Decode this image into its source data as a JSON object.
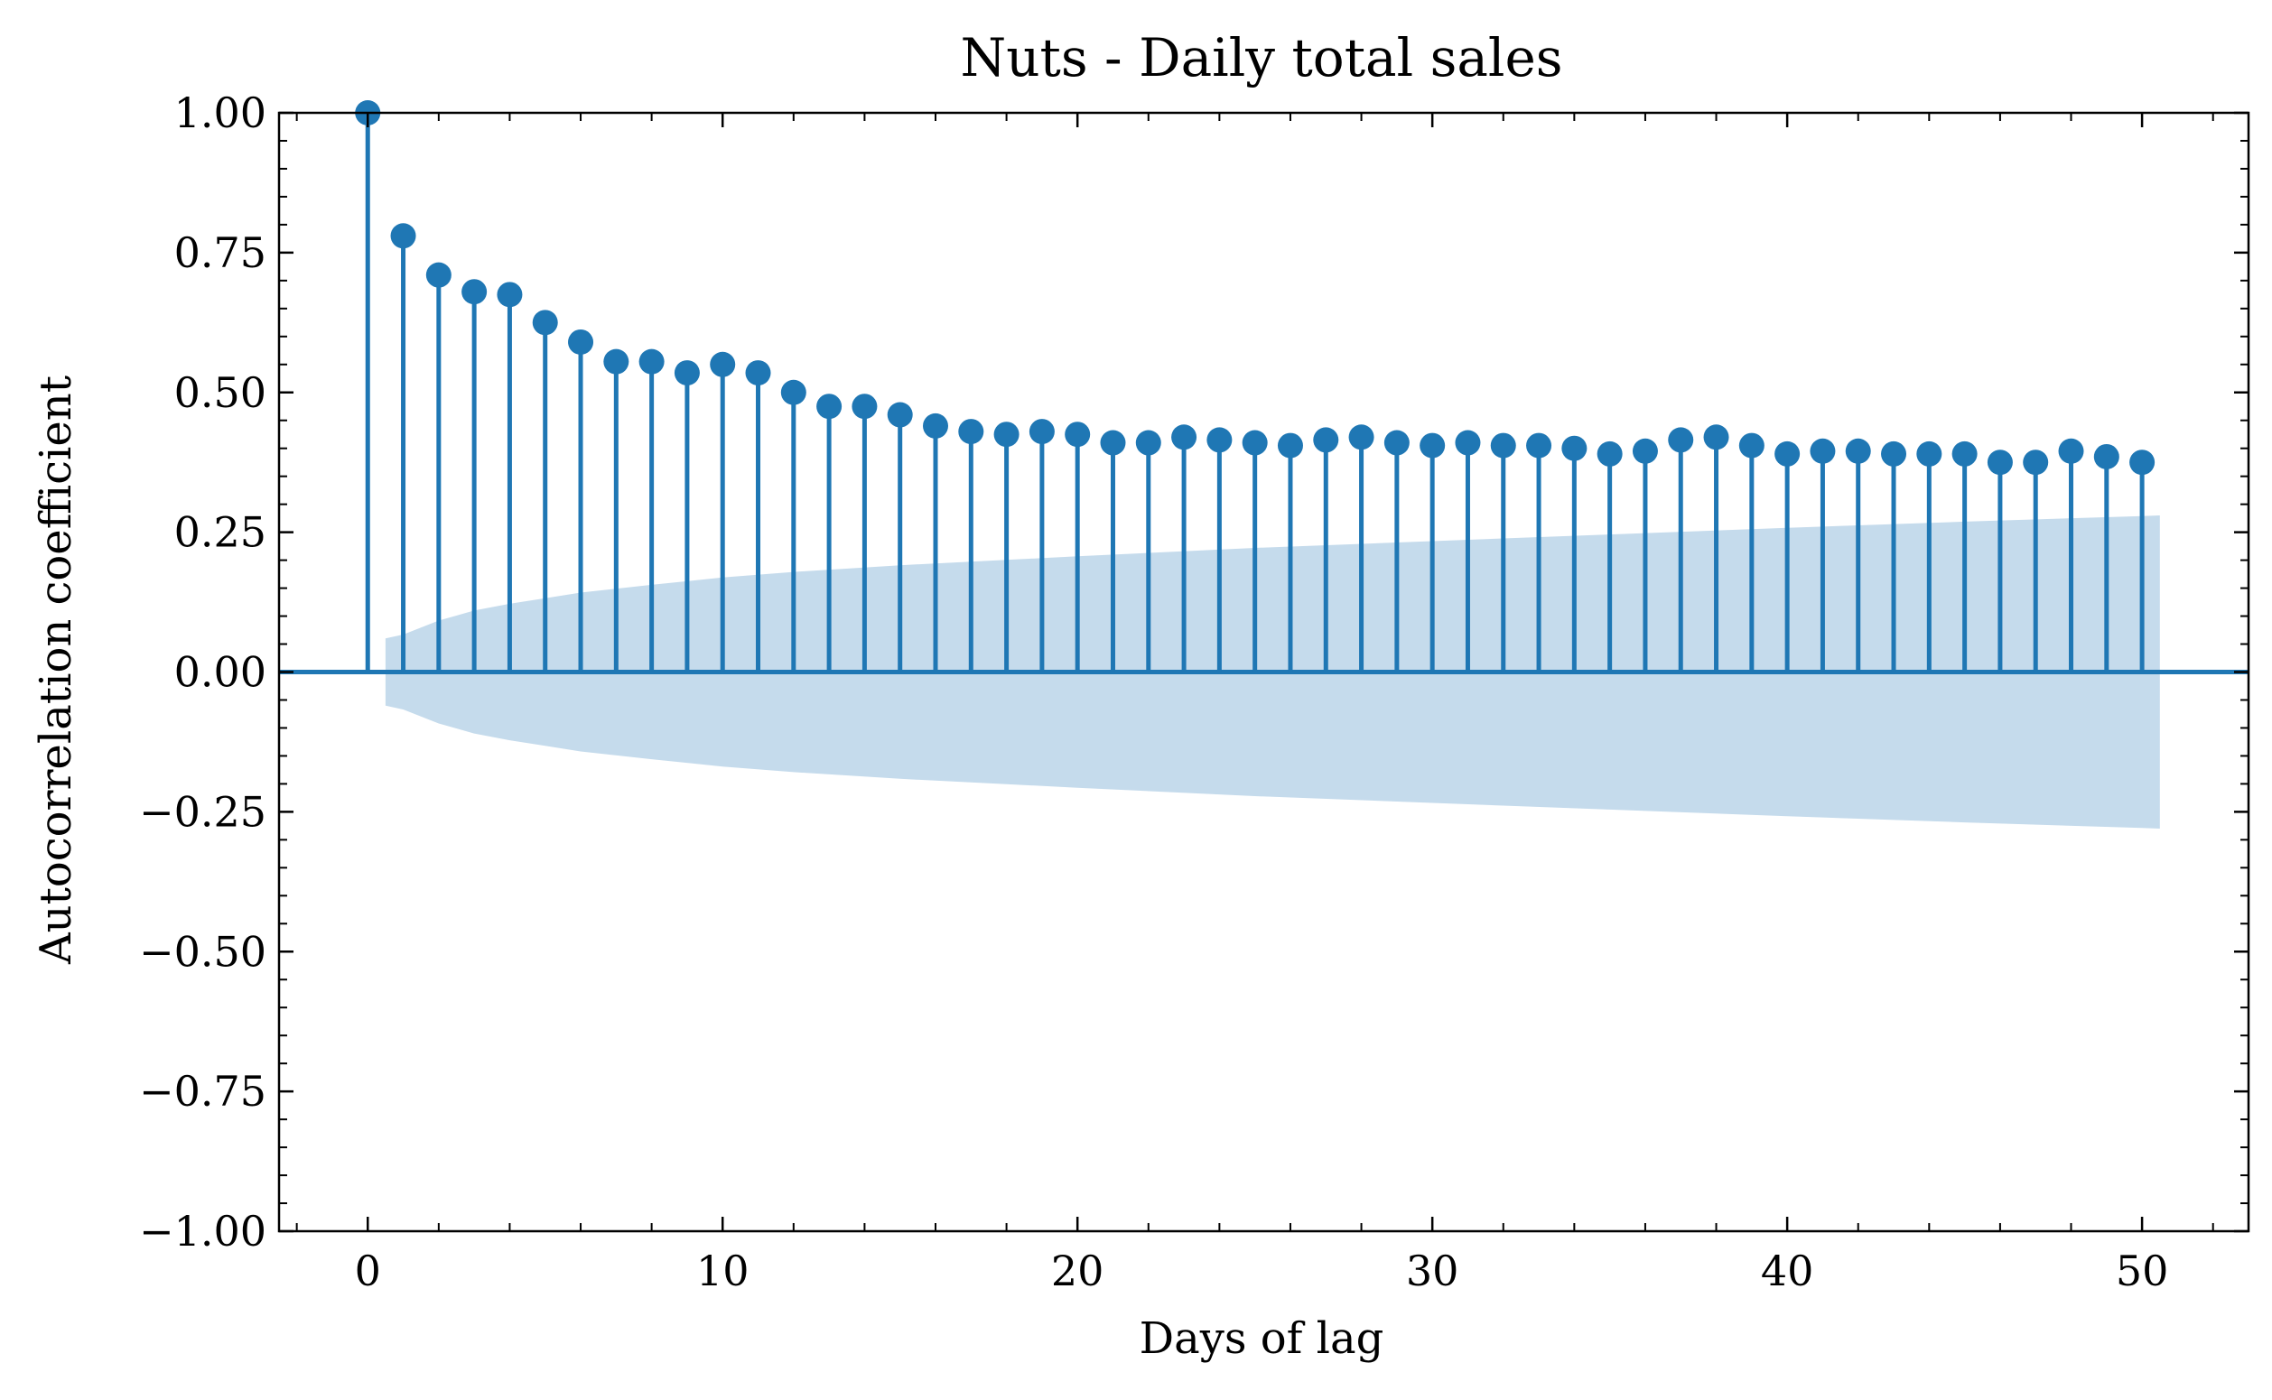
{
  "chart_data": {
    "type": "stem",
    "title": "Nuts - Daily total sales",
    "xlabel": "Days of lag",
    "ylabel": "Autocorrelation coefficient",
    "xlim": [
      -2.5,
      53
    ],
    "ylim": [
      -1.0,
      1.0
    ],
    "xticks": [
      0,
      10,
      20,
      30,
      40,
      50
    ],
    "xtick_labels": [
      "0",
      "10",
      "20",
      "30",
      "40",
      "50"
    ],
    "yticks": [
      1.0,
      0.75,
      0.5,
      0.25,
      0.0,
      -0.25,
      -0.5,
      -0.75,
      -1.0
    ],
    "ytick_labels": [
      "1.00",
      "0.75",
      "0.50",
      "0.25",
      "0.00",
      "−0.25",
      "−0.50",
      "−0.75",
      "−1.00"
    ],
    "grid": false,
    "colors": {
      "stem": "#1f77b4",
      "confidence_band": "#c5dbec",
      "zero_line": "#1f77b4"
    },
    "lags": [
      0,
      1,
      2,
      3,
      4,
      5,
      6,
      7,
      8,
      9,
      10,
      11,
      12,
      13,
      14,
      15,
      16,
      17,
      18,
      19,
      20,
      21,
      22,
      23,
      24,
      25,
      26,
      27,
      28,
      29,
      30,
      31,
      32,
      33,
      34,
      35,
      36,
      37,
      38,
      39,
      40,
      41,
      42,
      43,
      44,
      45,
      46,
      47,
      48,
      49,
      50
    ],
    "acf": [
      1.0,
      0.78,
      0.71,
      0.68,
      0.675,
      0.625,
      0.59,
      0.555,
      0.555,
      0.535,
      0.55,
      0.535,
      0.5,
      0.475,
      0.475,
      0.46,
      0.44,
      0.43,
      0.425,
      0.43,
      0.425,
      0.41,
      0.41,
      0.42,
      0.415,
      0.41,
      0.405,
      0.415,
      0.42,
      0.41,
      0.405,
      0.41,
      0.405,
      0.405,
      0.4,
      0.39,
      0.395,
      0.415,
      0.42,
      0.405,
      0.39,
      0.395,
      0.395,
      0.39,
      0.39,
      0.39,
      0.375,
      0.375,
      0.395,
      0.385,
      0.375
    ],
    "confidence_band": {
      "x": [
        0.5,
        1,
        2,
        3,
        4,
        5,
        6,
        8,
        10,
        12,
        15,
        20,
        25,
        30,
        35,
        40,
        45,
        50,
        50.5
      ],
      "upper": [
        0.06,
        0.067,
        0.092,
        0.11,
        0.122,
        0.132,
        0.142,
        0.156,
        0.169,
        0.179,
        0.191,
        0.207,
        0.222,
        0.234,
        0.246,
        0.258,
        0.269,
        0.279,
        0.28
      ]
    }
  }
}
